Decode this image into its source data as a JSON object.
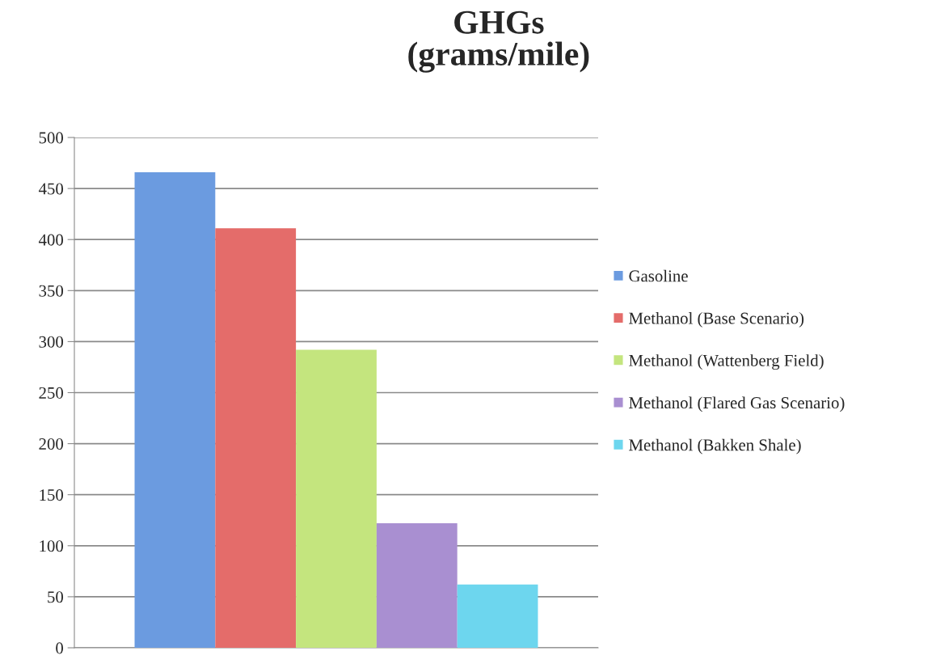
{
  "chart_data": {
    "type": "bar",
    "title": "GHGs\n(grams/mile)",
    "categories": [
      null
    ],
    "series": [
      {
        "name": "Gasoline",
        "color": "#6b9be0",
        "values": [
          466
        ]
      },
      {
        "name": "Methanol (Base Scenario)",
        "color": "#e46c6a",
        "values": [
          411
        ]
      },
      {
        "name": "Methanol (Wattenberg Field)",
        "color": "#c4e57e",
        "values": [
          292
        ]
      },
      {
        "name": "Methanol (Flared Gas Scenario)",
        "color": "#a98fd1",
        "values": [
          122
        ]
      },
      {
        "name": "Methanol (Bakken Shale)",
        "color": "#6dd6ee",
        "values": [
          62
        ]
      }
    ],
    "ylim": [
      0,
      500
    ],
    "yticks": [
      0,
      50,
      100,
      150,
      200,
      250,
      300,
      350,
      400,
      450,
      500
    ],
    "grid": "y",
    "legend": "right",
    "tick_labels": "y"
  }
}
